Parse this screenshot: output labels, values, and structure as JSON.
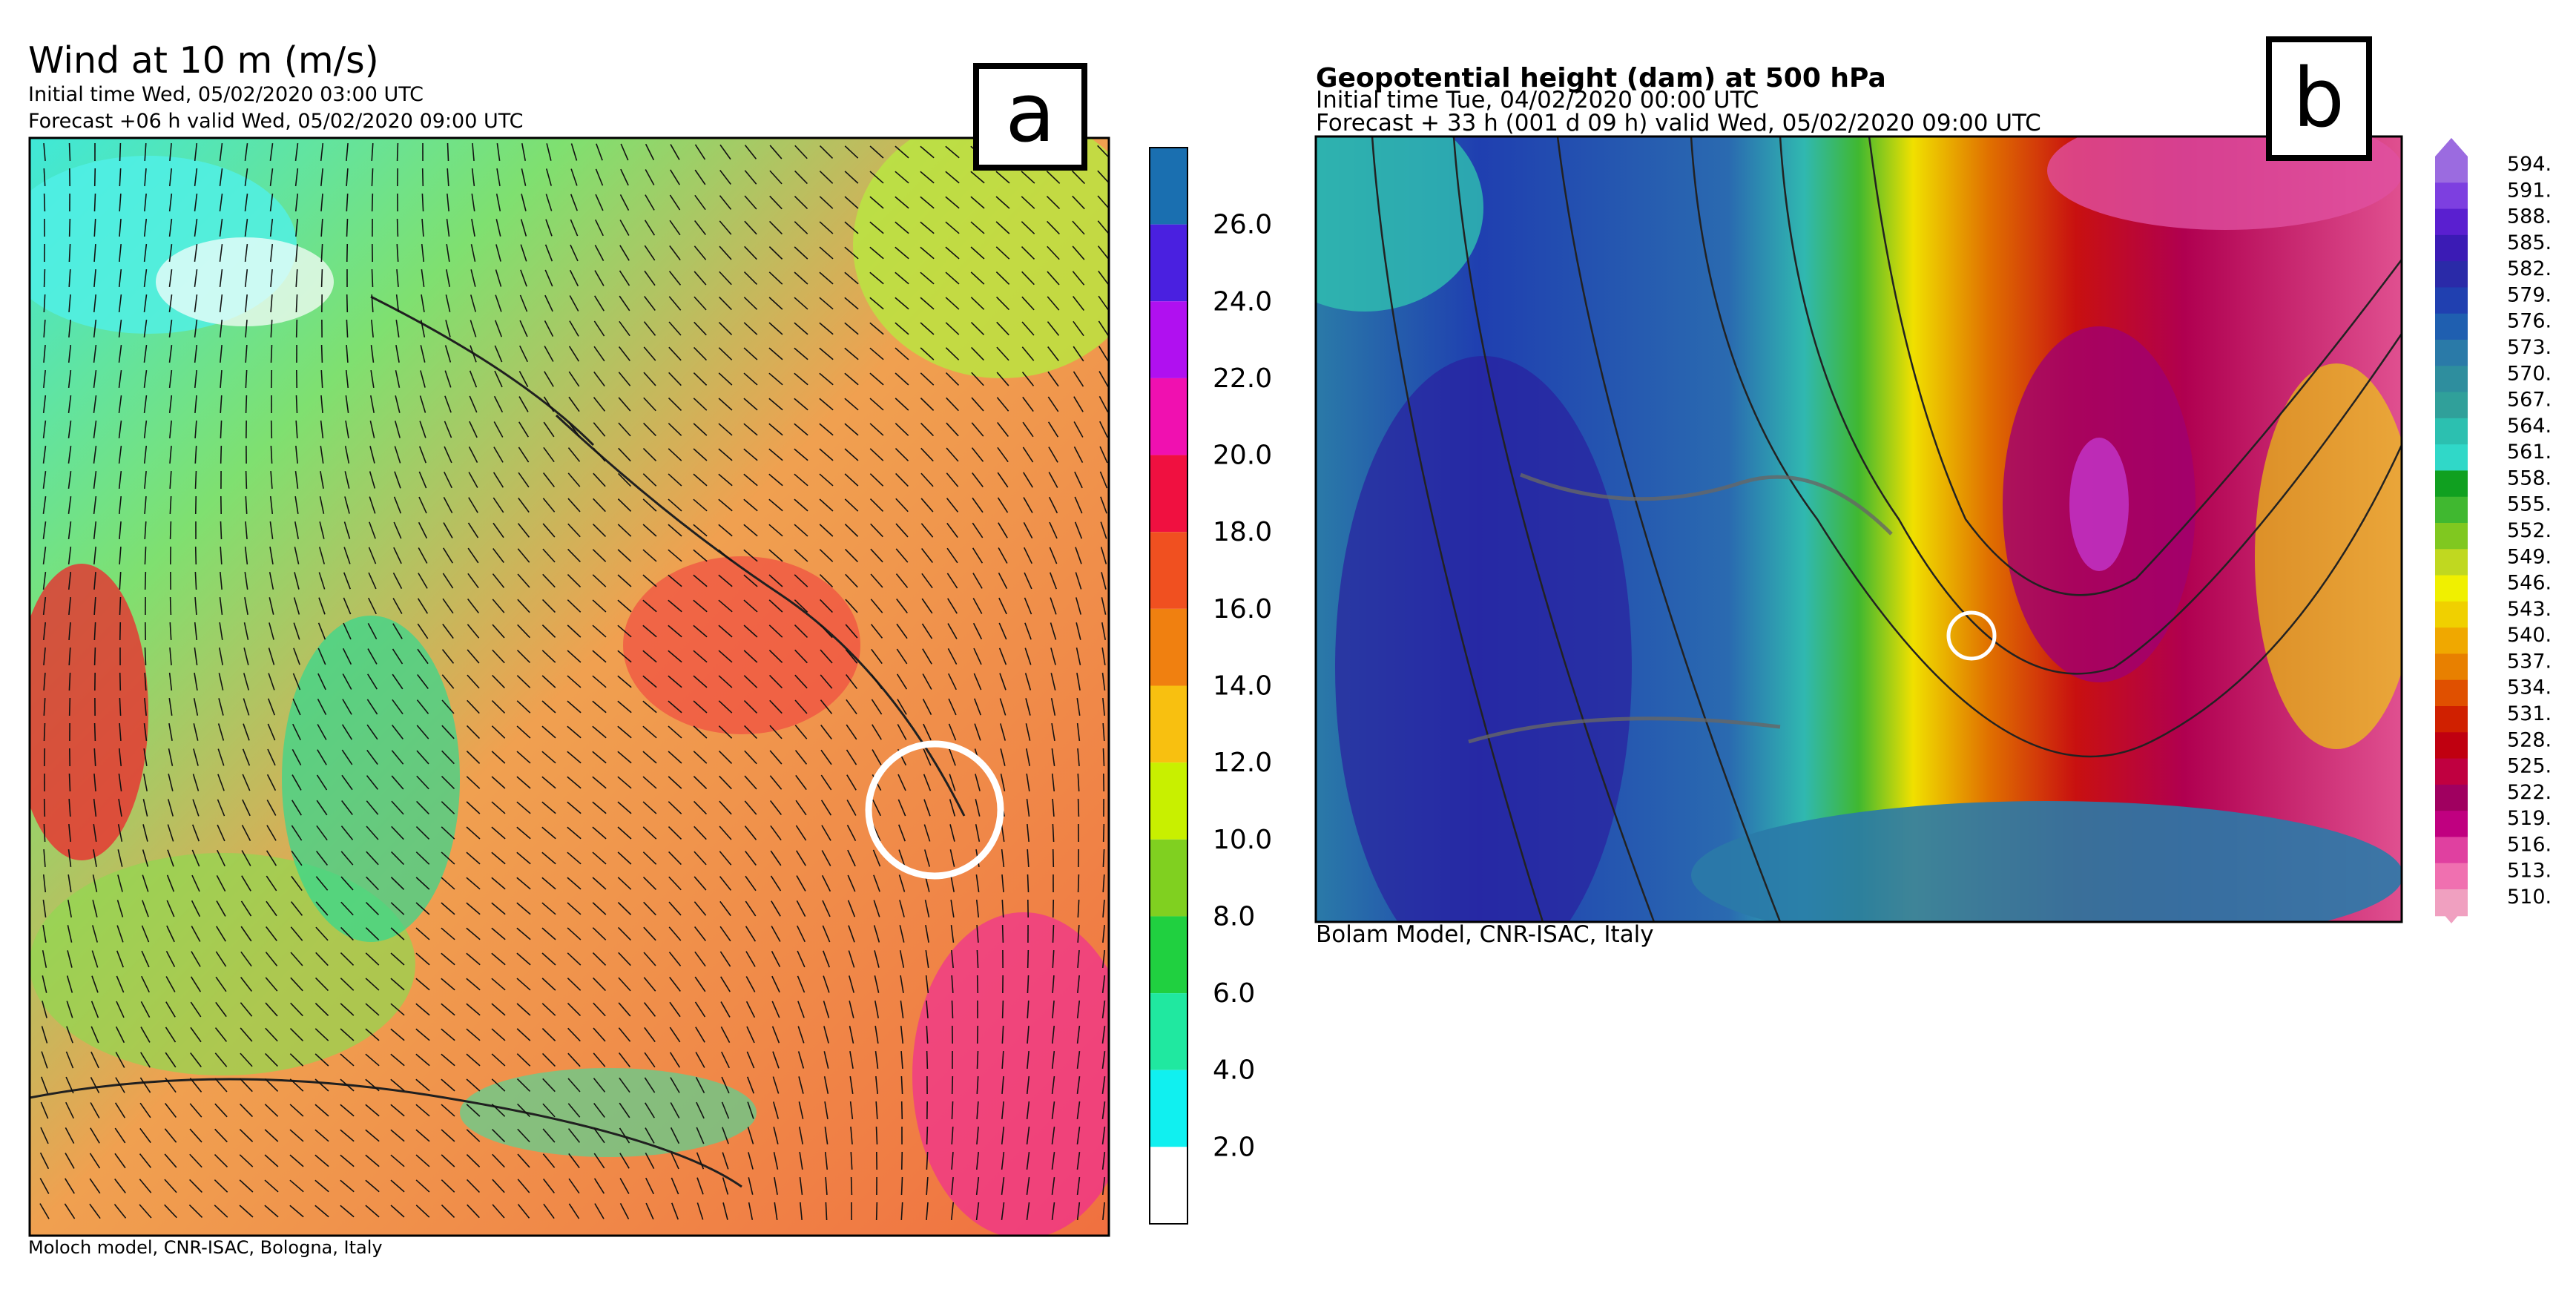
{
  "panel_a": {
    "title": "Wind at 10 m (m/s)",
    "initial_time": "Initial time  Wed, 05/02/2020 03:00 UTC",
    "forecast": "Forecast +06 h valid  Wed, 05/02/2020 09:00 UTC",
    "letter": "a",
    "footer": "Moloch model, CNR-ISAC, Bologna, Italy",
    "colorbar_labels": [
      "26.0",
      "24.0",
      "22.0",
      "20.0",
      "18.0",
      "16.0",
      "14.0",
      "12.0",
      "10.0",
      "8.0",
      "6.0",
      "4.0",
      "2.0"
    ]
  },
  "panel_b": {
    "title": "Geopotential height (dam) at 500 hPa",
    "initial_time": "Initial time  Tue, 04/02/2020  00:00 UTC",
    "forecast": "Forecast  +  33 h  (001 d 09 h)  valid Wed, 05/02/2020 09:00 UTC",
    "letter": "b",
    "footer": "Bolam Model, CNR-ISAC, Italy",
    "colorbar_labels": [
      "594.",
      "591.",
      "588.",
      "585.",
      "582.",
      "579.",
      "576.",
      "573.",
      "570.",
      "567.",
      "564.",
      "561.",
      "558.",
      "555.",
      "552.",
      "549.",
      "546.",
      "543.",
      "540.",
      "537.",
      "534.",
      "531.",
      "528.",
      "525.",
      "522.",
      "519.",
      "516.",
      "513.",
      "510."
    ]
  }
}
